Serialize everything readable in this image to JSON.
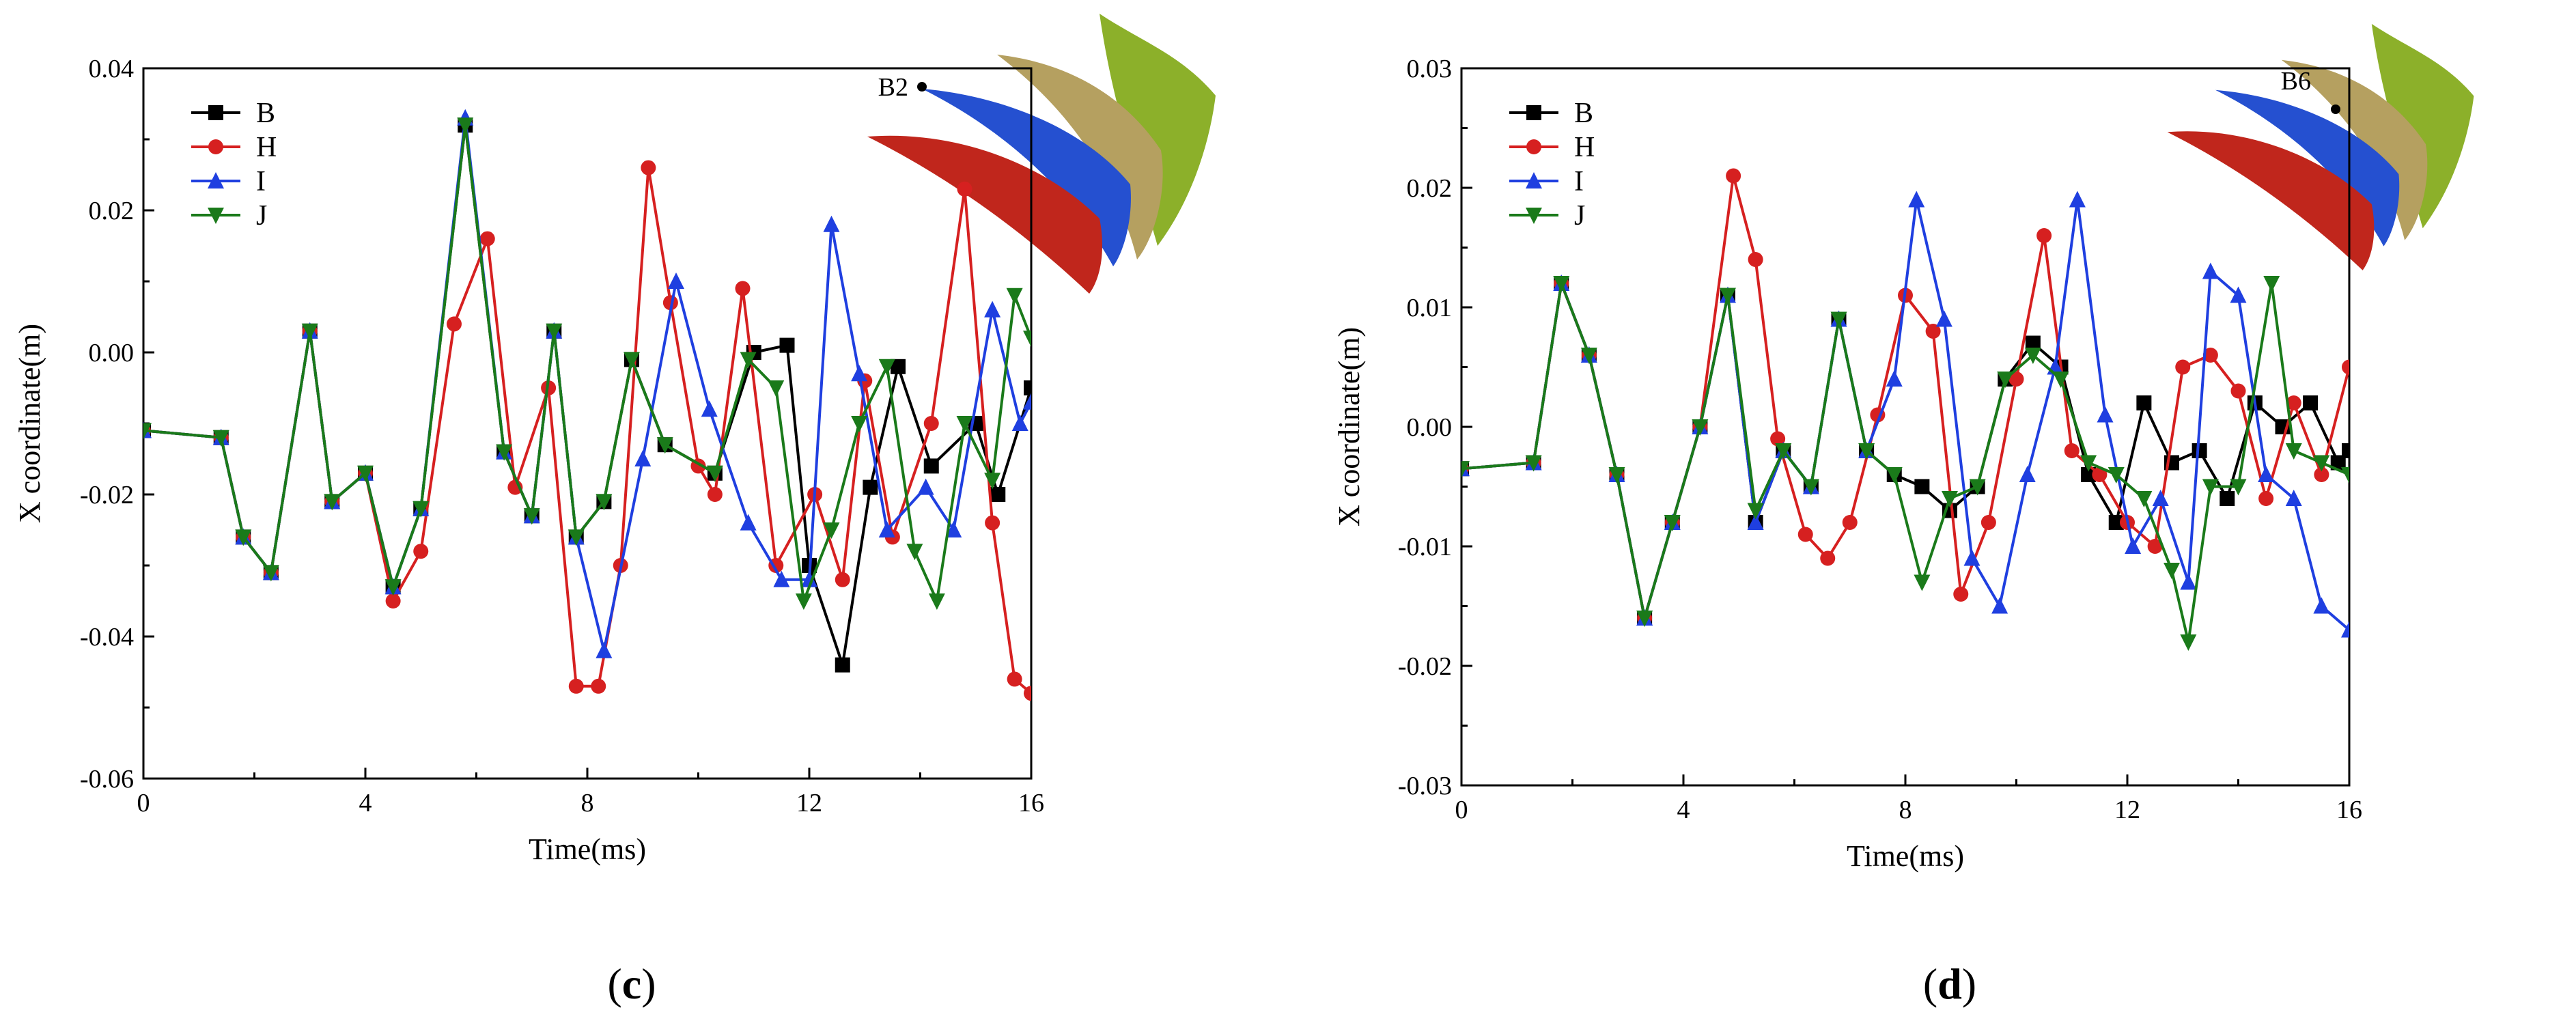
{
  "chart_data": [
    {
      "type": "line",
      "panel": "(c)",
      "caption_open": "(",
      "caption_letter": "c",
      "caption_close": ")",
      "title": "",
      "xlabel": "Time(ms)",
      "ylabel": "X coordinate(m)",
      "xlim": [
        0,
        16
      ],
      "ylim": [
        -0.06,
        0.04
      ],
      "xticks": [
        0,
        4,
        8,
        12,
        16
      ],
      "xtick_labels": [
        "0",
        "4",
        "8",
        "12",
        "16"
      ],
      "yticks": [
        -0.06,
        -0.04,
        -0.02,
        0.0,
        0.02,
        0.04
      ],
      "ytick_labels": [
        "-0.06",
        "-0.04",
        "-0.02",
        "0.00",
        "0.02",
        "0.04"
      ],
      "legend_position": "top-left",
      "point_label": "B2",
      "series": [
        {
          "name": "B",
          "color": "#000000",
          "marker": "square",
          "x": [
            0,
            1.4,
            1.8,
            2.3,
            3.0,
            3.4,
            4.0,
            4.5,
            5.0,
            5.8,
            6.5,
            7.0,
            7.4,
            7.8,
            8.3,
            8.8,
            9.4,
            10.3,
            11.0,
            11.6,
            12.0,
            12.6,
            13.1,
            13.6,
            14.2,
            15.0,
            15.4,
            16.0
          ],
          "y": [
            -0.011,
            -0.012,
            -0.026,
            -0.031,
            0.003,
            -0.021,
            -0.017,
            -0.033,
            -0.022,
            0.032,
            -0.014,
            -0.023,
            0.003,
            -0.026,
            -0.021,
            -0.001,
            -0.013,
            -0.017,
            0.0,
            0.001,
            -0.03,
            -0.044,
            -0.019,
            -0.002,
            -0.016,
            -0.01,
            -0.02,
            -0.005
          ]
        },
        {
          "name": "H",
          "color": "#d62020",
          "marker": "circle",
          "x": [
            0,
            1.4,
            1.8,
            2.3,
            3.0,
            3.4,
            4.0,
            4.5,
            5.0,
            5.6,
            6.2,
            6.7,
            7.3,
            7.8,
            8.2,
            8.6,
            9.1,
            9.5,
            10.0,
            10.3,
            10.8,
            11.4,
            12.1,
            12.6,
            13.0,
            13.5,
            14.2,
            14.8,
            15.3,
            15.7,
            16.0
          ],
          "y": [
            -0.011,
            -0.012,
            -0.026,
            -0.031,
            0.003,
            -0.021,
            -0.017,
            -0.035,
            -0.028,
            0.004,
            0.016,
            -0.019,
            -0.005,
            -0.047,
            -0.047,
            -0.03,
            0.026,
            0.007,
            -0.016,
            -0.02,
            0.009,
            -0.03,
            -0.02,
            -0.032,
            -0.004,
            -0.026,
            -0.01,
            0.023,
            -0.024,
            -0.046,
            -0.048
          ]
        },
        {
          "name": "I",
          "color": "#1f3fe0",
          "marker": "triangle-up",
          "x": [
            0,
            1.4,
            1.8,
            2.3,
            3.0,
            3.4,
            4.0,
            4.5,
            5.0,
            5.8,
            6.5,
            7.0,
            7.4,
            7.8,
            8.3,
            9.0,
            9.6,
            10.2,
            10.9,
            11.5,
            12.0,
            12.4,
            12.9,
            13.4,
            14.1,
            14.6,
            15.3,
            15.8,
            16.0
          ],
          "y": [
            -0.011,
            -0.012,
            -0.026,
            -0.031,
            0.003,
            -0.021,
            -0.017,
            -0.033,
            -0.022,
            0.033,
            -0.014,
            -0.023,
            0.003,
            -0.026,
            -0.042,
            -0.015,
            0.01,
            -0.008,
            -0.024,
            -0.032,
            -0.032,
            0.018,
            -0.003,
            -0.025,
            -0.019,
            -0.025,
            0.006,
            -0.01,
            -0.007
          ]
        },
        {
          "name": "J",
          "color": "#1a7a1a",
          "marker": "triangle-down",
          "x": [
            0,
            1.4,
            1.8,
            2.3,
            3.0,
            3.4,
            4.0,
            4.5,
            5.0,
            5.8,
            6.5,
            7.0,
            7.4,
            7.8,
            8.3,
            8.8,
            9.4,
            10.3,
            10.9,
            11.4,
            11.9,
            12.4,
            12.9,
            13.4,
            13.9,
            14.3,
            14.8,
            15.3,
            15.7,
            16.0
          ],
          "y": [
            -0.011,
            -0.012,
            -0.026,
            -0.031,
            0.003,
            -0.021,
            -0.017,
            -0.033,
            -0.022,
            0.032,
            -0.014,
            -0.023,
            0.003,
            -0.026,
            -0.021,
            -0.001,
            -0.013,
            -0.017,
            -0.001,
            -0.005,
            -0.035,
            -0.025,
            -0.01,
            -0.002,
            -0.028,
            -0.035,
            -0.01,
            -0.018,
            0.008,
            0.002
          ]
        }
      ]
    },
    {
      "type": "line",
      "panel": "(d)",
      "caption_open": "(",
      "caption_letter": "d",
      "caption_close": ")",
      "title": "",
      "xlabel": "Time(ms)",
      "ylabel": "X coordinate(m)",
      "xlim": [
        0,
        16
      ],
      "ylim": [
        -0.03,
        0.03
      ],
      "xticks": [
        0,
        4,
        8,
        12,
        16
      ],
      "xtick_labels": [
        "0",
        "4",
        "8",
        "12",
        "16"
      ],
      "yticks": [
        -0.03,
        -0.02,
        -0.01,
        0.0,
        0.01,
        0.02,
        0.03
      ],
      "ytick_labels": [
        "-0.03",
        "-0.02",
        "-0.01",
        "0.00",
        "0.01",
        "0.02",
        "0.03"
      ],
      "legend_position": "top-left",
      "point_label": "B6",
      "series": [
        {
          "name": "B",
          "color": "#000000",
          "marker": "square",
          "x": [
            0,
            1.3,
            1.8,
            2.3,
            2.8,
            3.3,
            3.8,
            4.3,
            4.8,
            5.3,
            5.8,
            6.3,
            6.8,
            7.3,
            7.8,
            8.3,
            8.8,
            9.3,
            9.8,
            10.3,
            10.8,
            11.3,
            11.8,
            12.3,
            12.8,
            13.3,
            13.8,
            14.3,
            14.8,
            15.3,
            15.8,
            16.0
          ],
          "y": [
            -0.0035,
            -0.003,
            0.012,
            0.006,
            -0.004,
            -0.016,
            -0.008,
            0.0,
            0.011,
            -0.008,
            -0.002,
            -0.005,
            0.009,
            -0.002,
            -0.004,
            -0.005,
            -0.007,
            -0.005,
            0.004,
            0.007,
            0.005,
            -0.004,
            -0.008,
            0.002,
            -0.003,
            -0.002,
            -0.006,
            0.002,
            0.0,
            0.002,
            -0.003,
            -0.002
          ]
        },
        {
          "name": "H",
          "color": "#d62020",
          "marker": "circle",
          "x": [
            0,
            1.3,
            1.8,
            2.3,
            2.8,
            3.3,
            3.8,
            4.3,
            4.9,
            5.3,
            5.7,
            6.2,
            6.6,
            7.0,
            7.5,
            8.0,
            8.5,
            9.0,
            9.5,
            10.0,
            10.5,
            11.0,
            11.5,
            12.0,
            12.5,
            13.0,
            13.5,
            14.0,
            14.5,
            15.0,
            15.5,
            16.0
          ],
          "y": [
            -0.0035,
            -0.003,
            0.012,
            0.006,
            -0.004,
            -0.016,
            -0.008,
            0.0,
            0.021,
            0.014,
            -0.001,
            -0.009,
            -0.011,
            -0.008,
            0.001,
            0.011,
            0.008,
            -0.014,
            -0.008,
            0.004,
            0.016,
            -0.002,
            -0.004,
            -0.008,
            -0.01,
            0.005,
            0.006,
            0.003,
            -0.006,
            0.002,
            -0.004,
            0.005
          ]
        },
        {
          "name": "I",
          "color": "#1f3fe0",
          "marker": "triangle-up",
          "x": [
            0,
            1.3,
            1.8,
            2.3,
            2.8,
            3.3,
            3.8,
            4.3,
            4.8,
            5.3,
            5.8,
            6.3,
            6.8,
            7.3,
            7.8,
            8.2,
            8.7,
            9.2,
            9.7,
            10.2,
            10.7,
            11.1,
            11.6,
            12.1,
            12.6,
            13.1,
            13.5,
            14.0,
            14.5,
            15.0,
            15.5,
            16.0
          ],
          "y": [
            -0.0035,
            -0.003,
            0.012,
            0.006,
            -0.004,
            -0.016,
            -0.008,
            0.0,
            0.011,
            -0.008,
            -0.002,
            -0.005,
            0.009,
            -0.002,
            0.004,
            0.019,
            0.009,
            -0.011,
            -0.015,
            -0.004,
            0.005,
            0.019,
            0.001,
            -0.01,
            -0.006,
            -0.013,
            0.013,
            0.011,
            -0.004,
            -0.006,
            -0.015,
            -0.017
          ]
        },
        {
          "name": "J",
          "color": "#1a7a1a",
          "marker": "triangle-down",
          "x": [
            0,
            1.3,
            1.8,
            2.3,
            2.8,
            3.3,
            3.8,
            4.3,
            4.8,
            5.3,
            5.8,
            6.3,
            6.8,
            7.3,
            7.8,
            8.3,
            8.8,
            9.3,
            9.8,
            10.3,
            10.8,
            11.3,
            11.8,
            12.3,
            12.8,
            13.1,
            13.5,
            14.0,
            14.6,
            15.0,
            15.5,
            16.0
          ],
          "y": [
            -0.0035,
            -0.003,
            0.012,
            0.006,
            -0.004,
            -0.016,
            -0.008,
            0.0,
            0.011,
            -0.007,
            -0.002,
            -0.005,
            0.009,
            -0.002,
            -0.004,
            -0.013,
            -0.006,
            -0.005,
            0.004,
            0.006,
            0.004,
            -0.003,
            -0.004,
            -0.006,
            -0.012,
            -0.018,
            -0.005,
            -0.005,
            0.012,
            -0.002,
            -0.003,
            -0.004
          ]
        }
      ]
    }
  ],
  "decor": {
    "blade_colors": [
      "#c0261c",
      "#2550d0",
      "#b5a060",
      "#8cb02a"
    ]
  }
}
